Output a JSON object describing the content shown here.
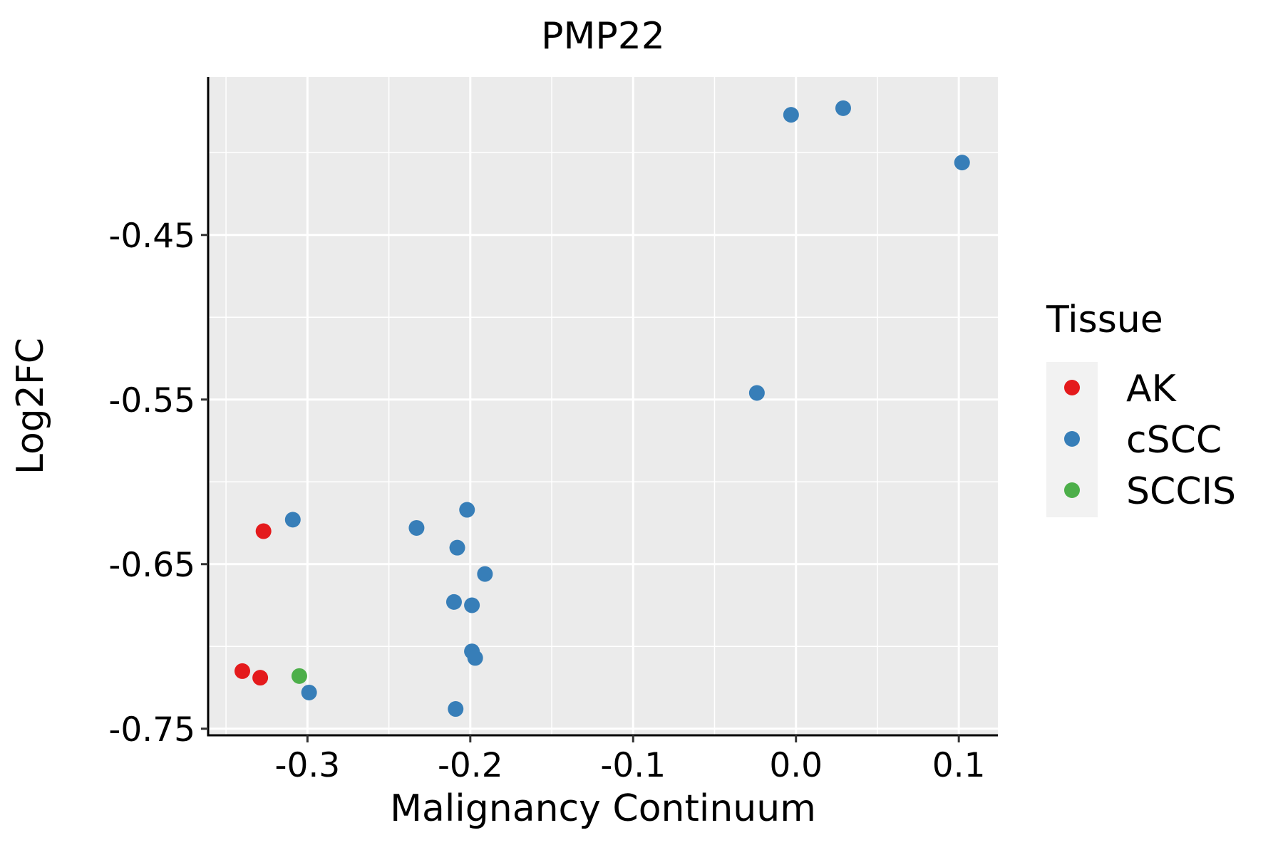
{
  "chart_data": {
    "type": "scatter",
    "title": "PMP22",
    "xlabel": "Malignancy Continuum",
    "ylabel": "Log2FC",
    "xlim": [
      -0.361,
      0.124
    ],
    "ylim": [
      -0.754,
      -0.354
    ],
    "x_ticks": [
      -0.3,
      -0.2,
      -0.1,
      0.0,
      0.1
    ],
    "x_tick_labels": [
      "-0.3",
      "-0.2",
      "-0.1",
      "0.0",
      "0.1"
    ],
    "y_ticks": [
      -0.45,
      -0.55,
      -0.65,
      -0.75
    ],
    "y_tick_labels": [
      "-0.45",
      "-0.55",
      "-0.65",
      "-0.75"
    ],
    "grid": true,
    "legend": {
      "title": "Tissue",
      "position": "right",
      "entries": [
        {
          "label": "AK",
          "color": "#E41A1C"
        },
        {
          "label": "cSCC",
          "color": "#377EB8"
        },
        {
          "label": "SCCIS",
          "color": "#4DAF4A"
        }
      ]
    },
    "series": [
      {
        "name": "AK",
        "color": "#E41A1C",
        "points": [
          {
            "x": -0.327,
            "y": -0.63
          },
          {
            "x": -0.34,
            "y": -0.715
          },
          {
            "x": -0.329,
            "y": -0.719
          }
        ]
      },
      {
        "name": "cSCC",
        "color": "#377EB8",
        "points": [
          {
            "x": -0.003,
            "y": -0.377
          },
          {
            "x": 0.029,
            "y": -0.373
          },
          {
            "x": 0.102,
            "y": -0.406
          },
          {
            "x": -0.024,
            "y": -0.546
          },
          {
            "x": -0.309,
            "y": -0.623
          },
          {
            "x": -0.233,
            "y": -0.628
          },
          {
            "x": -0.202,
            "y": -0.617
          },
          {
            "x": -0.208,
            "y": -0.64
          },
          {
            "x": -0.191,
            "y": -0.656
          },
          {
            "x": -0.21,
            "y": -0.673
          },
          {
            "x": -0.199,
            "y": -0.675
          },
          {
            "x": -0.199,
            "y": -0.703
          },
          {
            "x": -0.197,
            "y": -0.707
          },
          {
            "x": -0.299,
            "y": -0.728
          },
          {
            "x": -0.209,
            "y": -0.738
          }
        ]
      },
      {
        "name": "SCCIS",
        "color": "#4DAF4A",
        "points": [
          {
            "x": -0.305,
            "y": -0.718
          }
        ]
      }
    ]
  }
}
